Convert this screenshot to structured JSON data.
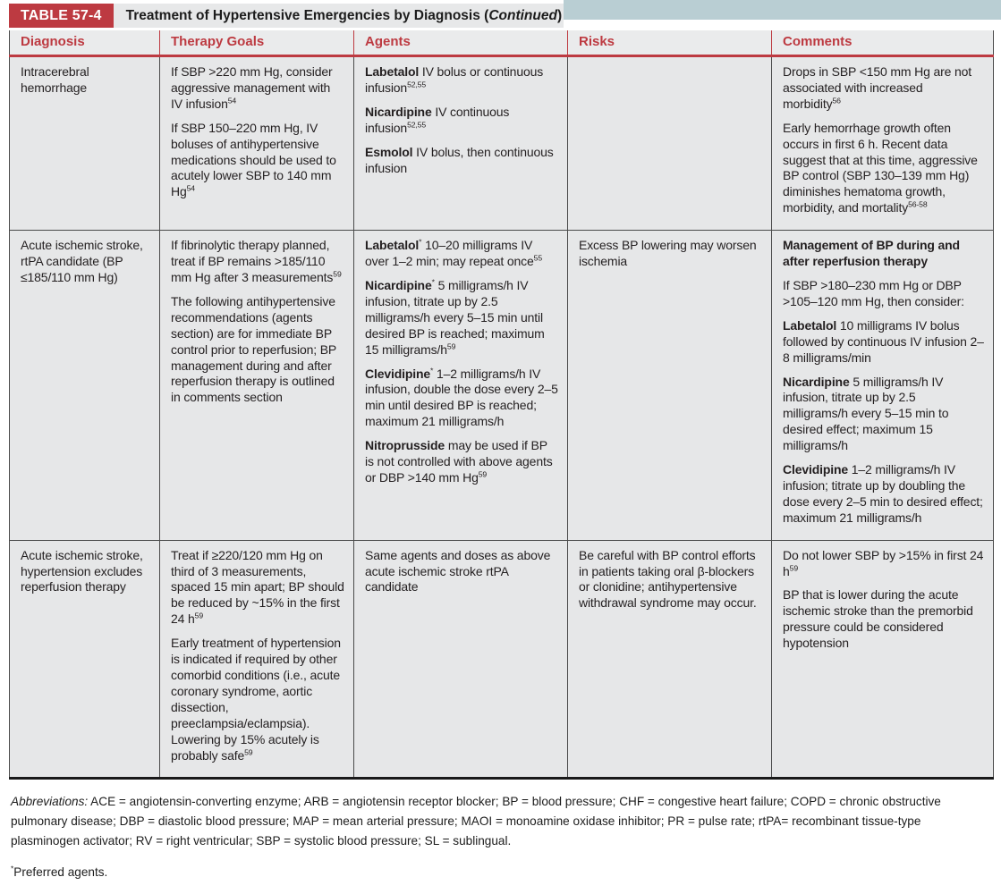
{
  "colors": {
    "accent_red": "#bd3a41",
    "band_blue": "#b9ced3",
    "header_bg": "#eaebec",
    "cell_bg": "#e6e7e8",
    "text": "#231f20"
  },
  "header": {
    "table_label": "TABLE 57-4",
    "title_prefix": "Treatment of Hypertensive Emergencies by Diagnosis (",
    "title_emphasis": "Continued",
    "title_suffix": ")"
  },
  "columns": [
    "Diagnosis",
    "Therapy Goals",
    "Agents",
    "Risks",
    "Comments"
  ],
  "rows": [
    {
      "diagnosis": "Intracerebral hemorrhage",
      "therapy_goals": [
        [
          {
            "t": "If SBP >220 mm Hg, consider aggressive management with IV infusion"
          },
          {
            "t": "54",
            "sup": true
          }
        ],
        [
          {
            "t": "If SBP 150–220 mm Hg, IV boluses of antihypertensive medications should be used to acutely lower SBP to 140 mm Hg"
          },
          {
            "t": "54",
            "sup": true
          }
        ]
      ],
      "agents": [
        [
          {
            "t": "Labetalol",
            "b": true
          },
          {
            "t": " IV bolus or continuous infusion"
          },
          {
            "t": "52,55",
            "sup": true
          }
        ],
        [
          {
            "t": "Nicardipine",
            "b": true
          },
          {
            "t": " IV continuous infusion"
          },
          {
            "t": "52,55",
            "sup": true
          }
        ],
        [
          {
            "t": "Esmolol",
            "b": true
          },
          {
            "t": " IV bolus, then continuous infusion"
          }
        ]
      ],
      "risks": [],
      "comments": [
        [
          {
            "t": "Drops in SBP <150 mm Hg are not associated with increased morbidity"
          },
          {
            "t": "56",
            "sup": true
          }
        ],
        [
          {
            "t": "Early hemorrhage growth often occurs in first 6 h. Recent data suggest that at this time, aggressive BP control (SBP 130–139 mm Hg) diminishes hematoma growth, morbidity, and mortality"
          },
          {
            "t": "56-58",
            "sup": true
          }
        ]
      ]
    },
    {
      "diagnosis": "Acute ischemic stroke, rtPA candidate (BP ≤185/110 mm Hg)",
      "therapy_goals": [
        [
          {
            "t": "If fibrinolytic therapy planned, treat if BP remains >185/110 mm Hg after 3 measurements"
          },
          {
            "t": "59",
            "sup": true
          }
        ],
        [
          {
            "t": "The following antihypertensive recommendations (agents section) are for immediate BP control prior to reperfusion; BP management during and after reperfusion therapy is outlined in comments section"
          }
        ]
      ],
      "agents": [
        [
          {
            "t": "Labetalol",
            "b": true
          },
          {
            "t": "*",
            "sup": true
          },
          {
            "t": " 10–20 milligrams IV over 1–2 min; may repeat once"
          },
          {
            "t": "55",
            "sup": true
          }
        ],
        [
          {
            "t": "Nicardipine",
            "b": true
          },
          {
            "t": "*",
            "sup": true
          },
          {
            "t": " 5 milligrams/h IV infusion, titrate up by 2.5 milligrams/h every 5–15 min until desired BP is reached; maximum 15 milligrams/h"
          },
          {
            "t": "59",
            "sup": true
          }
        ],
        [
          {
            "t": "Clevidipine",
            "b": true
          },
          {
            "t": "*",
            "sup": true
          },
          {
            "t": " 1–2 milligrams/h IV infusion, double the dose every 2–5 min until desired BP is reached; maximum 21 milligrams/h"
          }
        ],
        [
          {
            "t": "Nitroprusside",
            "b": true
          },
          {
            "t": " may be used if BP is not controlled with above agents or DBP >140 mm Hg"
          },
          {
            "t": "59",
            "sup": true
          }
        ]
      ],
      "risks": [
        [
          {
            "t": "Excess BP lowering may worsen ischemia"
          }
        ]
      ],
      "comments": [
        [
          {
            "t": "Management of BP during and after reperfusion therapy",
            "b": true
          }
        ],
        [
          {
            "t": "If SBP >180–230 mm Hg or DBP >105–120 mm Hg, then consider:"
          }
        ],
        [
          {
            "t": "Labetalol",
            "b": true
          },
          {
            "t": " 10 milligrams IV bolus followed by continuous IV infusion 2–8 milligrams/min"
          }
        ],
        [
          {
            "t": "Nicardipine",
            "b": true
          },
          {
            "t": " 5 milligrams/h IV infusion, titrate up by 2.5 milligrams/h every 5–15 min to desired effect; maximum 15 milligrams/h"
          }
        ],
        [
          {
            "t": "Clevidipine",
            "b": true
          },
          {
            "t": " 1–2 milligrams/h IV infusion; titrate up by doubling the dose every 2–5 min to desired effect; maximum 21 milligrams/h"
          }
        ]
      ]
    },
    {
      "diagnosis": "Acute ischemic stroke, hypertension excludes reperfusion therapy",
      "therapy_goals": [
        [
          {
            "t": "Treat if ≥220/120 mm Hg on third of 3 measurements, spaced 15 min apart; BP should be reduced by ~15% in the first 24 h"
          },
          {
            "t": "59",
            "sup": true
          }
        ],
        [
          {
            "t": "Early treatment of hypertension is indicated if required by other comorbid conditions (i.e., acute coronary syndrome, aortic dissection, preeclampsia/eclampsia). Lowering by 15% acutely is probably safe"
          },
          {
            "t": "59",
            "sup": true
          }
        ]
      ],
      "agents": [
        [
          {
            "t": "Same agents and doses as above acute ischemic stroke rtPA candidate"
          }
        ]
      ],
      "risks": [
        [
          {
            "t": "Be careful with BP control efforts in patients taking oral β-blockers or clonidine; antihypertensive withdrawal syndrome may occur."
          }
        ]
      ],
      "comments": [
        [
          {
            "t": "Do not lower SBP by >15% in first 24 h"
          },
          {
            "t": "59",
            "sup": true
          }
        ],
        [
          {
            "t": "BP that is lower during the acute ischemic stroke than the premorbid pressure could be considered hypotension"
          }
        ]
      ]
    }
  ],
  "footer": {
    "abbreviations_label": "Abbreviations:",
    "abbreviations_text": " ACE = angiotensin-converting enzyme; ARB = angiotensin receptor blocker; BP = blood pressure; CHF = congestive heart failure; COPD = chronic obstructive pulmonary disease; DBP = diastolic blood pressure; MAP = mean arterial pressure; MAOI = monoamine oxidase inhibitor; PR = pulse rate; rtPA= recombinant tissue-type plasminogen activator; RV = right ventricular; SBP = systolic blood pressure; SL = sublingual.",
    "footnote_marker": "*",
    "footnote_text": "Preferred agents."
  }
}
